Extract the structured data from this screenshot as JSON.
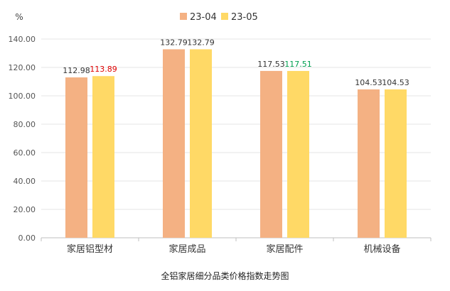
{
  "chart_data": {
    "type": "bar",
    "unit_label": "%",
    "categories": [
      "家居铝型材",
      "家居成品",
      "家居配件",
      "机械设备"
    ],
    "series": [
      {
        "name": "23-04",
        "color": "#F4B183",
        "values": [
          112.98,
          132.79,
          117.53,
          104.53
        ],
        "labels": [
          "112.98",
          "132.79",
          "117.53",
          "104.53"
        ],
        "label_colors": [
          "#333333",
          "#333333",
          "#333333",
          "#333333"
        ]
      },
      {
        "name": "23-05",
        "color": "#FFD966",
        "values": [
          113.89,
          132.79,
          117.51,
          104.53
        ],
        "labels": [
          "113.89",
          "132.79",
          "117.51",
          "104.53"
        ],
        "label_colors": [
          "#E00000",
          "#333333",
          "#00A050",
          "#333333"
        ]
      }
    ],
    "yticks": [
      "0.00",
      "20.00",
      "40.00",
      "60.00",
      "80.00",
      "100.00",
      "120.00",
      "140.00"
    ],
    "ylim": [
      0,
      140
    ],
    "grid": true,
    "legend_position": "top-center",
    "title": "全铝家居细分品类价格指数走势图"
  }
}
